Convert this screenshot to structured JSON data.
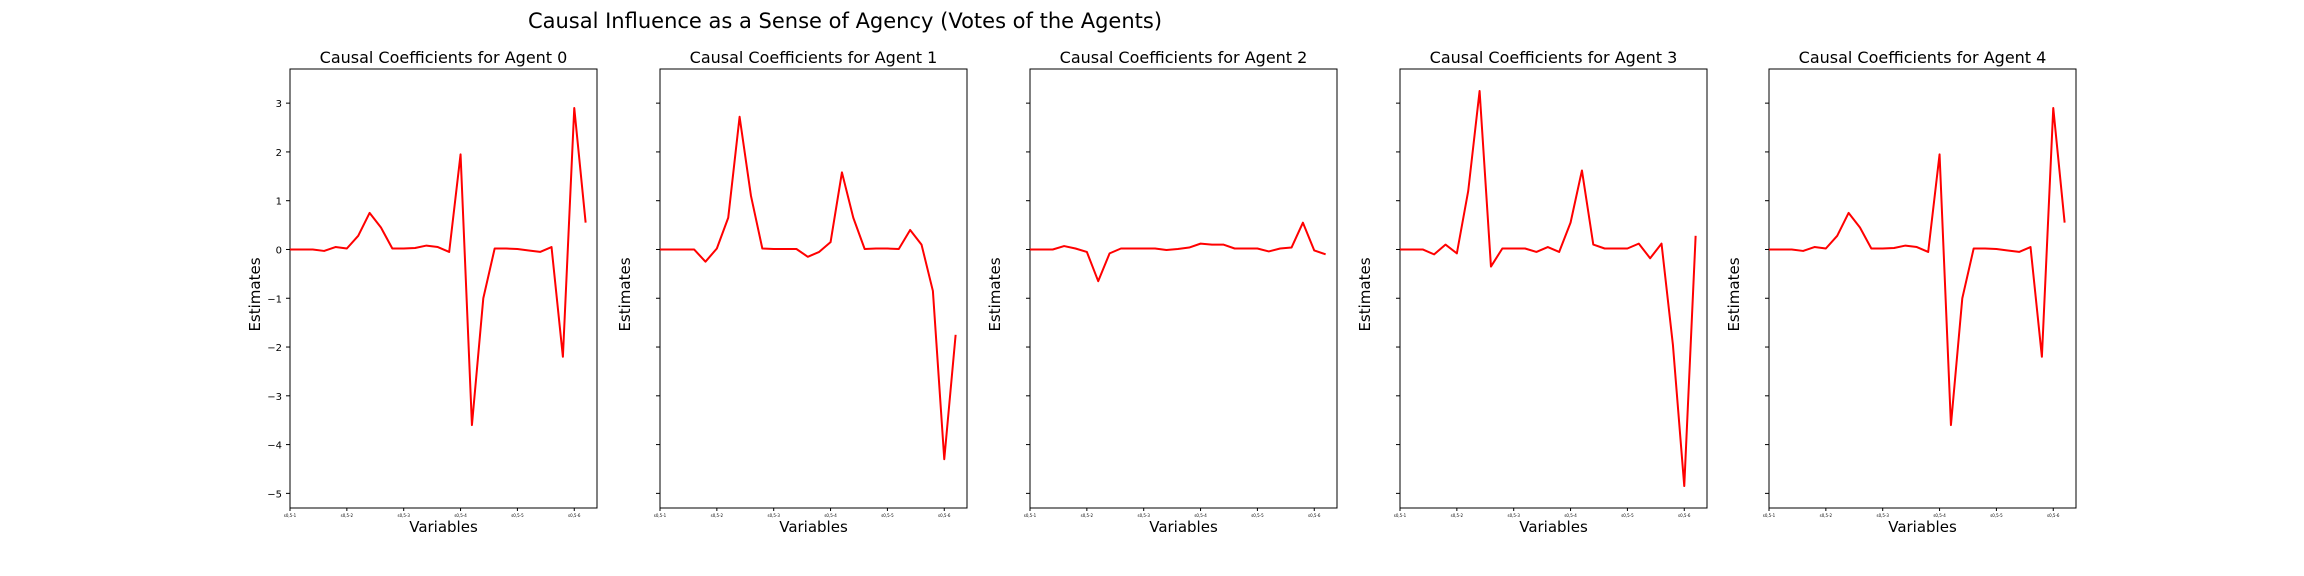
{
  "suptitle": "Causal Influence as a Sense of Agency (Votes of the Agents)",
  "line_color": "#ff0000",
  "chart_data": [
    {
      "type": "line",
      "title": "Causal Coefficients for Agent 0",
      "xlabel": "Variables",
      "ylabel": "Estimates",
      "ylim": [
        -5.3,
        3.7
      ],
      "yticks": [
        3,
        2,
        1,
        0,
        -1,
        -2,
        -3,
        -4,
        -5
      ],
      "x_tick_labels": [
        "s0,5-1",
        "s0,5-2",
        "s0,5-3",
        "s0,5-4",
        "s0,5-5",
        "s0,5-6"
      ],
      "x_tick_positions": [
        0,
        5,
        10,
        15,
        20,
        25
      ],
      "series": [
        {
          "values": [
            0,
            0,
            0,
            -0.03,
            0.05,
            0.02,
            0.28,
            0.75,
            0.45,
            0.02,
            0.02,
            0.03,
            0.08,
            0.05,
            -0.05,
            1.95,
            -3.6,
            -1.0,
            0.02,
            0.02,
            0.01,
            -0.02,
            -0.05,
            0.05,
            -2.2,
            2.9,
            0.55
          ]
        }
      ]
    },
    {
      "type": "line",
      "title": "Causal Coefficients for Agent 1",
      "xlabel": "Variables",
      "ylabel": "Estimates",
      "ylim": [
        -5.3,
        3.7
      ],
      "yticks": [
        3,
        2,
        1,
        0,
        -1,
        -2,
        -3,
        -4,
        -5
      ],
      "x_tick_labels": [
        "s0,5-1",
        "s0,5-2",
        "s0,5-3",
        "s0,5-4",
        "s0,5-5",
        "s0,5-6"
      ],
      "x_tick_positions": [
        0,
        5,
        10,
        15,
        20,
        25
      ],
      "series": [
        {
          "values": [
            0,
            0,
            0,
            0,
            -0.25,
            0.02,
            0.65,
            2.72,
            1.1,
            0.02,
            0.01,
            0.01,
            0.01,
            -0.15,
            -0.05,
            0.15,
            1.58,
            0.65,
            0.01,
            0.02,
            0.02,
            0.01,
            0.4,
            0.1,
            -0.85,
            -4.3,
            -1.75
          ]
        }
      ]
    },
    {
      "type": "line",
      "title": "Causal Coefficients for Agent 2",
      "xlabel": "Variables",
      "ylabel": "Estimates",
      "ylim": [
        -5.3,
        3.7
      ],
      "yticks": [
        3,
        2,
        1,
        0,
        -1,
        -2,
        -3,
        -4,
        -5
      ],
      "x_tick_labels": [
        "s0,5-1",
        "s0,5-2",
        "s0,5-3",
        "s0,5-4",
        "s0,5-5",
        "s0,5-6"
      ],
      "x_tick_positions": [
        0,
        5,
        10,
        15,
        20,
        25
      ],
      "series": [
        {
          "values": [
            0,
            0,
            0,
            0.07,
            0.02,
            -0.05,
            -0.65,
            -0.08,
            0.02,
            0.02,
            0.02,
            0.02,
            -0.01,
            0.01,
            0.04,
            0.12,
            0.1,
            0.1,
            0.02,
            0.02,
            0.02,
            -0.04,
            0.02,
            0.04,
            0.55,
            -0.02,
            -0.1
          ]
        }
      ]
    },
    {
      "type": "line",
      "title": "Causal Coefficients for Agent 3",
      "xlabel": "Variables",
      "ylabel": "Estimates",
      "ylim": [
        -5.3,
        3.7
      ],
      "yticks": [
        3,
        2,
        1,
        0,
        -1,
        -2,
        -3,
        -4,
        -5
      ],
      "x_tick_labels": [
        "s0,5-1",
        "s0,5-2",
        "s0,5-3",
        "s0,5-4",
        "s0,5-5",
        "s0,5-6"
      ],
      "x_tick_positions": [
        0,
        5,
        10,
        15,
        20,
        25
      ],
      "series": [
        {
          "values": [
            0,
            0,
            0,
            -0.1,
            0.1,
            -0.08,
            1.2,
            3.25,
            -0.35,
            0.02,
            0.02,
            0.02,
            -0.05,
            0.05,
            -0.05,
            0.55,
            1.62,
            0.1,
            0.02,
            0.02,
            0.02,
            0.12,
            -0.18,
            0.12,
            -1.95,
            -4.85,
            0.28
          ]
        }
      ]
    },
    {
      "type": "line",
      "title": "Causal Coefficients for Agent 4",
      "xlabel": "Variables",
      "ylabel": "Estimates",
      "ylim": [
        -5.3,
        3.7
      ],
      "yticks": [
        3,
        2,
        1,
        0,
        -1,
        -2,
        -3,
        -4,
        -5
      ],
      "x_tick_labels": [
        "s0,5-1",
        "s0,5-2",
        "s0,5-3",
        "s0,5-4",
        "s0,5-5",
        "s0,5-6"
      ],
      "x_tick_positions": [
        0,
        5,
        10,
        15,
        20,
        25
      ],
      "series": [
        {
          "values": [
            0,
            0,
            0,
            -0.03,
            0.05,
            0.02,
            0.28,
            0.75,
            0.45,
            0.02,
            0.02,
            0.03,
            0.08,
            0.05,
            -0.05,
            1.95,
            -3.6,
            -1.0,
            0.02,
            0.02,
            0.01,
            -0.02,
            -0.05,
            0.05,
            -2.2,
            2.9,
            0.55
          ]
        }
      ]
    }
  ]
}
